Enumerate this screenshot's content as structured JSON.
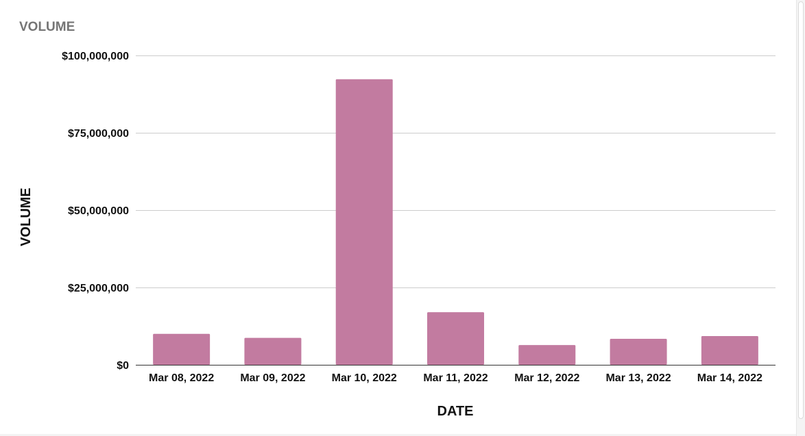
{
  "chart_data": {
    "type": "bar",
    "title": "VOLUME",
    "xlabel": "DATE",
    "ylabel": "VOLUME",
    "categories": [
      "Mar 08, 2022",
      "Mar 09, 2022",
      "Mar 10, 2022",
      "Mar 11, 2022",
      "Mar 12, 2022",
      "Mar 13, 2022",
      "Mar 14, 2022"
    ],
    "values": [
      10000000,
      8700000,
      92300000,
      17000000,
      6400000,
      8400000,
      9300000
    ],
    "ylim": [
      0,
      100000000
    ],
    "yticks": [
      0,
      25000000,
      50000000,
      75000000,
      100000000
    ],
    "ytick_labels": [
      "$0",
      "$25,000,000",
      "$50,000,000",
      "$75,000,000",
      "$100,000,000"
    ],
    "grid": true,
    "legend": "none",
    "bar_color": "#c27ba0",
    "grid_color": "#cccccc",
    "axis_color": "#333333"
  }
}
